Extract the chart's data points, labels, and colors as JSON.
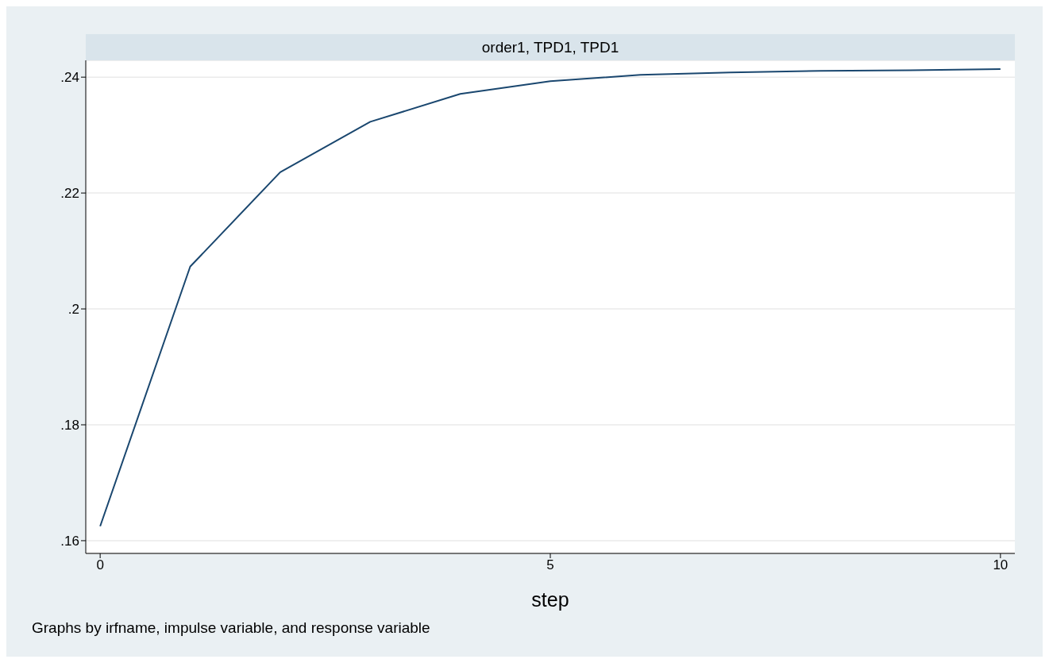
{
  "chart_data": {
    "type": "line",
    "title": "order1, TPD1, TPD1",
    "xlabel": "step",
    "annotations": [
      "Graphs by irfname, impulse variable, and response variable"
    ],
    "x": [
      0,
      1,
      2,
      3,
      4,
      5,
      6,
      7,
      8,
      9,
      10
    ],
    "series": [
      {
        "color": "#1a476f",
        "values": [
          0.1625,
          0.2073,
          0.2236,
          0.2323,
          0.2371,
          0.2393,
          0.2404,
          0.2408,
          0.2411,
          0.2412,
          0.2414
        ]
      }
    ],
    "xlim": [
      -0.16,
      10.16
    ],
    "xticks": [
      0,
      5,
      10
    ],
    "ylim": [
      0.1578,
      0.2429
    ],
    "yticks": [
      {
        "value": 0.16,
        "label": ".16"
      },
      {
        "value": 0.18,
        "label": ".18"
      },
      {
        "value": 0.2,
        "label": ".2"
      },
      {
        "value": 0.22,
        "label": ".22"
      },
      {
        "value": 0.24,
        "label": ".24"
      }
    ],
    "grid": "y",
    "marker": "none",
    "line_style": "solid",
    "legend": false
  }
}
